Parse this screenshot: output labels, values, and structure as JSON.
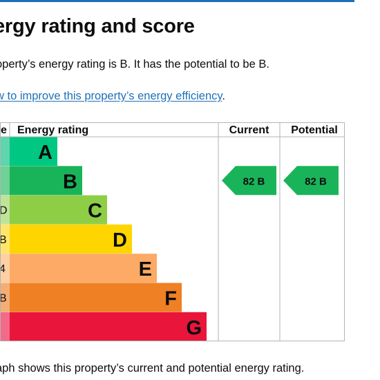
{
  "page": {
    "title": "ergy rating and score",
    "summary": "operty’s energy rating is B. It has the potential to be B.",
    "improve_link": "w to improve this property’s energy efficiency",
    "improve_link_suffix": ".",
    "caption": "aph shows this property’s current and potential energy rating."
  },
  "chart_data": {
    "type": "table",
    "columns": [
      "e",
      "Energy rating",
      "Current",
      "Potential"
    ],
    "bands": [
      {
        "letter": "A",
        "score_label": "",
        "color": "#00c781",
        "edge_color": "#5fd4ad"
      },
      {
        "letter": "B",
        "score_label": "",
        "color": "#19b459",
        "edge_color": "#6fd196"
      },
      {
        "letter": "C",
        "score_label": "D",
        "color": "#8dce46",
        "edge_color": "#c0e39a"
      },
      {
        "letter": "D",
        "score_label": "B",
        "color": "#ffd500",
        "edge_color": "#ffe56b"
      },
      {
        "letter": "E",
        "score_label": "4",
        "color": "#fcaa65",
        "edge_color": "#fdcfa5"
      },
      {
        "letter": "F",
        "score_label": "B",
        "color": "#ef8023",
        "edge_color": "#f4ae75"
      },
      {
        "letter": "G",
        "score_label": "",
        "color": "#e9153b",
        "edge_color": "#f26a88"
      }
    ],
    "current": {
      "score": 82,
      "band": "B",
      "label": "82  B",
      "color": "#19b459"
    },
    "potential": {
      "score": 82,
      "band": "B",
      "label": "82  B",
      "color": "#19b459"
    }
  }
}
